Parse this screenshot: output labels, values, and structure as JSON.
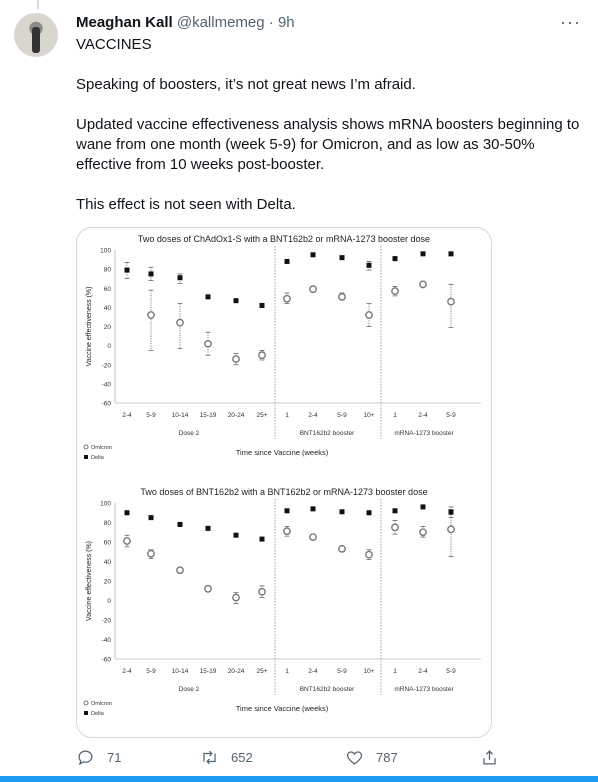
{
  "tweet": {
    "author_name": "Meaghan Kall",
    "author_handle": "@kallmemeg",
    "separator": " · ",
    "time": "9h",
    "paragraphs": [
      "VACCINES",
      "Speaking of boosters, it’s not great news I’m afraid.",
      "Updated vaccine effectiveness analysis shows mRNA boosters beginning to wane from one month (week 5-9) for Omicron, and as low as 30-50% effective from 10 weeks post-booster.",
      "This effect is not seen with Delta."
    ],
    "replies": "71",
    "retweets": "652",
    "likes": "787"
  },
  "icons": {
    "avatar": "avatar-photo",
    "more": "more-icon",
    "reply": "reply-icon",
    "retweet": "retweet-icon",
    "like": "heart-icon",
    "share": "share-icon"
  },
  "colors": {
    "accent": "#1d9bf0",
    "muted": "#536471"
  },
  "chart_data": [
    {
      "type": "scatter",
      "title": "Two doses of ChAdOx1-S with a BNT162b2 or mRNA-1273 booster dose",
      "ylabel": "Vaccine effectiveness (%)",
      "xlabel": "Time since Vaccine (weeks)",
      "ylim": [
        -60,
        100
      ],
      "yticks": [
        100,
        80,
        60,
        40,
        20,
        0,
        -20,
        -40,
        -60
      ],
      "groups": [
        "Dose 2",
        "BNT162b2 booster",
        "mRNA-1273 booster"
      ],
      "categories": [
        "2-4",
        "5-9",
        "10-14",
        "15-19",
        "20-24",
        "25+",
        "1",
        "2-4",
        "5-9",
        "10+",
        "1",
        "2-4",
        "5-9"
      ],
      "group_index": [
        0,
        0,
        0,
        0,
        0,
        0,
        1,
        1,
        1,
        1,
        2,
        2,
        2
      ],
      "legend": "bottom-left",
      "series": [
        {
          "name": "Omicron",
          "marker": "open-circle",
          "values": [
            null,
            32,
            24,
            2,
            -14,
            -10,
            49,
            59,
            51,
            32,
            57,
            64,
            46
          ],
          "lower": [
            null,
            -5,
            -3,
            -10,
            -20,
            -15,
            44,
            57,
            48,
            20,
            52,
            62,
            19
          ],
          "upper": [
            null,
            58,
            44,
            14,
            -8,
            -5,
            55,
            61,
            55,
            44,
            62,
            67,
            64
          ]
        },
        {
          "name": "Delta",
          "marker": "square",
          "values": [
            79,
            75,
            71,
            51,
            47,
            42,
            88,
            95,
            92,
            84,
            91,
            96,
            96
          ],
          "lower": [
            70,
            68,
            65,
            null,
            null,
            null,
            null,
            null,
            null,
            79,
            null,
            null,
            null
          ],
          "upper": [
            87,
            82,
            75,
            null,
            null,
            null,
            null,
            null,
            null,
            88,
            null,
            null,
            null
          ]
        }
      ]
    },
    {
      "type": "scatter",
      "title": "Two doses of BNT162b2 with a BNT162b2 or mRNA-1273 booster dose",
      "ylabel": "Vaccine effectiveness (%)",
      "xlabel": "Time since Vaccine (weeks)",
      "ylim": [
        -60,
        100
      ],
      "yticks": [
        100,
        80,
        60,
        40,
        20,
        0,
        -20,
        -40,
        -60
      ],
      "groups": [
        "Dose 2",
        "BNT162b2 booster",
        "mRNA-1273 booster"
      ],
      "categories": [
        "2-4",
        "5-9",
        "10-14",
        "15-19",
        "20-24",
        "25+",
        "1",
        "2-4",
        "5-9",
        "10+",
        "1",
        "2-4",
        "5-9"
      ],
      "group_index": [
        0,
        0,
        0,
        0,
        0,
        0,
        1,
        1,
        1,
        1,
        2,
        2,
        2
      ],
      "legend": "bottom-left",
      "series": [
        {
          "name": "Omicron",
          "marker": "open-circle",
          "values": [
            61,
            48,
            31,
            12,
            3,
            9,
            71,
            65,
            53,
            47,
            75,
            70,
            73
          ],
          "lower": [
            55,
            43,
            29,
            9,
            -3,
            3,
            66,
            63,
            51,
            42,
            68,
            65,
            45
          ],
          "upper": [
            67,
            52,
            33,
            15,
            8,
            15,
            76,
            67,
            55,
            52,
            82,
            76,
            88
          ]
        },
        {
          "name": "Delta",
          "marker": "square",
          "values": [
            90,
            85,
            78,
            74,
            67,
            63,
            92,
            94,
            91,
            90,
            92,
            96,
            91
          ],
          "lower": [
            null,
            null,
            null,
            null,
            null,
            null,
            null,
            null,
            null,
            null,
            null,
            null,
            85
          ],
          "upper": [
            null,
            null,
            null,
            null,
            null,
            null,
            null,
            null,
            null,
            null,
            null,
            null,
            96
          ]
        }
      ]
    }
  ]
}
